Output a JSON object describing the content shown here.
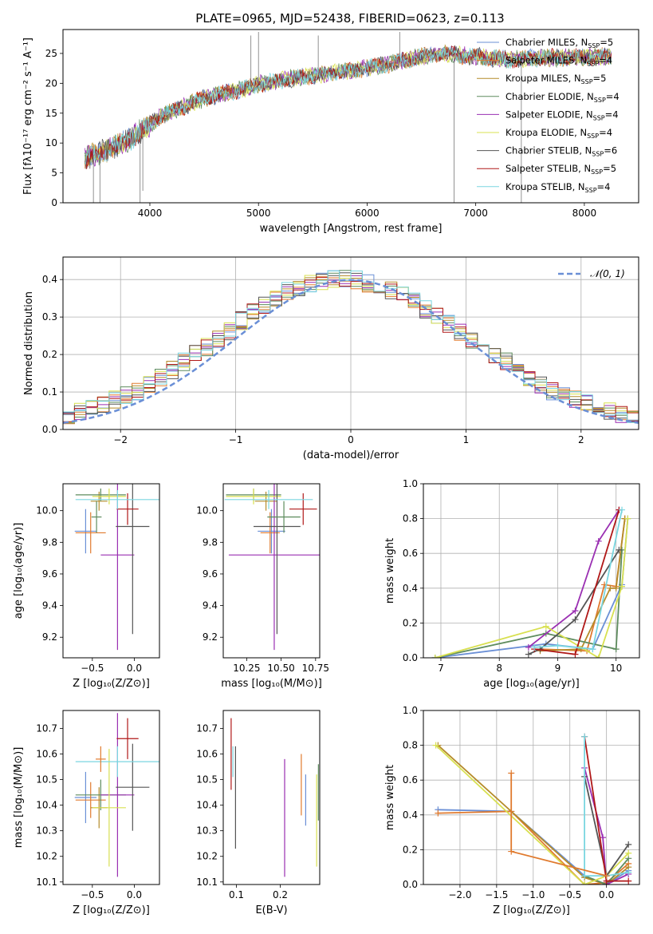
{
  "title": "PLATE=0965, MJD=52438, FIBERID=0623, z=0.113",
  "colors": {
    "chabrier_miles": "#6a8fd6",
    "salpeter_miles": "#e07a2e",
    "kroupa_miles": "#b58b2a",
    "chabrier_elodie": "#5e8c5e",
    "salpeter_elodie": "#9a2fb2",
    "kroupa_elodie": "#d8e050",
    "chabrier_stelib": "#555555",
    "salpeter_stelib": "#b01818",
    "kroupa_stelib": "#7ad6e0",
    "normal_curve": "#6a8fd6",
    "grid": "#b0b0b0"
  },
  "chart_data": [
    {
      "id": "spectrum",
      "type": "line",
      "xlabel": "wavelength [Angstrom, rest frame]",
      "ylabel": "Flux [fλ10⁻¹⁷ erg cm⁻² s⁻¹ A⁻¹]",
      "xlim": [
        3200,
        8500
      ],
      "ylim": [
        0,
        29
      ],
      "xticks": [
        4000,
        5000,
        6000,
        7000,
        8000
      ],
      "yticks": [
        0,
        5,
        10,
        15,
        20,
        25
      ],
      "grid": false,
      "legend_position": "upper right",
      "legend": [
        {
          "label": "Chabrier MILES, N",
          "sub": "SSP",
          "tail": "=5",
          "color_key": "chabrier_miles"
        },
        {
          "label": "Salpeter MILES, N",
          "sub": "SSP",
          "tail": "=4",
          "color_key": "salpeter_miles"
        },
        {
          "label": "Kroupa MILES, N",
          "sub": "SSP",
          "tail": "=5",
          "color_key": "kroupa_miles"
        },
        {
          "label": "Chabrier ELODIE, N",
          "sub": "SSP",
          "tail": "=4",
          "color_key": "chabrier_elodie"
        },
        {
          "label": "Salpeter ELODIE, N",
          "sub": "SSP",
          "tail": "=4",
          "color_key": "salpeter_elodie"
        },
        {
          "label": "Kroupa ELODIE, N",
          "sub": "SSP",
          "tail": "=4",
          "color_key": "kroupa_elodie"
        },
        {
          "label": "Chabrier STELIB, N",
          "sub": "SSP",
          "tail": "=6",
          "color_key": "chabrier_stelib"
        },
        {
          "label": "Salpeter STELIB, N",
          "sub": "SSP",
          "tail": "=5",
          "color_key": "salpeter_stelib"
        },
        {
          "label": "Kroupa STELIB, N",
          "sub": "SSP",
          "tail": "=4",
          "color_key": "kroupa_stelib"
        }
      ],
      "continuum_points": [
        [
          3400,
          7.5
        ],
        [
          3600,
          8.8
        ],
        [
          3800,
          10.5
        ],
        [
          3950,
          12.5
        ],
        [
          4100,
          14.5
        ],
        [
          4300,
          16
        ],
        [
          4500,
          17.5
        ],
        [
          4800,
          18.8
        ],
        [
          5000,
          19.8
        ],
        [
          5300,
          20.8
        ],
        [
          5600,
          21.5
        ],
        [
          5900,
          22.3
        ],
        [
          6200,
          23.2
        ],
        [
          6500,
          24.5
        ],
        [
          6700,
          25
        ],
        [
          7000,
          24.5
        ],
        [
          7300,
          24
        ],
        [
          7600,
          24.3
        ],
        [
          7900,
          24.3
        ],
        [
          8250,
          24.5
        ]
      ],
      "spikes": [
        [
          3480,
          0
        ],
        [
          3540,
          0
        ],
        [
          3910,
          0
        ],
        [
          3935,
          2
        ],
        [
          5000,
          28.6
        ],
        [
          5550,
          28
        ],
        [
          6300,
          28.6
        ],
        [
          6800,
          0
        ],
        [
          7420,
          0
        ],
        [
          4930,
          28
        ]
      ]
    },
    {
      "id": "residuals",
      "type": "area",
      "xlabel": "(data-model)/error",
      "ylabel": "Normed distribution",
      "xlim": [
        -2.5,
        2.5
      ],
      "ylim": [
        0,
        0.46
      ],
      "xticks": [
        -2,
        -1,
        0,
        1,
        2
      ],
      "yticks": [
        0.0,
        0.1,
        0.2,
        0.3,
        0.4
      ],
      "grid": true,
      "legend_position": "upper right",
      "legend": [
        {
          "label": "𝒩(0, 1)",
          "color_key": "normal_curve"
        }
      ],
      "bin_width": 0.1,
      "bin_start": -2.5,
      "histogram": [
        0.04,
        0.05,
        0.06,
        0.07,
        0.08,
        0.09,
        0.1,
        0.12,
        0.14,
        0.16,
        0.18,
        0.2,
        0.22,
        0.24,
        0.26,
        0.29,
        0.31,
        0.33,
        0.35,
        0.37,
        0.38,
        0.39,
        0.395,
        0.4,
        0.4,
        0.4,
        0.39,
        0.38,
        0.37,
        0.36,
        0.34,
        0.32,
        0.3,
        0.28,
        0.26,
        0.24,
        0.22,
        0.2,
        0.18,
        0.16,
        0.14,
        0.12,
        0.1,
        0.09,
        0.08,
        0.07,
        0.06,
        0.05,
        0.04,
        0.03
      ]
    },
    {
      "id": "age_vs_Z",
      "type": "scatter",
      "xlabel": "Z [log₁₀(Z/Z⊙)]",
      "ylabel": "age  [log₁₀(age/yr)]",
      "xlim": [
        -0.85,
        0.3
      ],
      "ylim": [
        9.07,
        10.17
      ],
      "xticks": [
        -0.5,
        0.0
      ],
      "yticks": [
        9.2,
        9.4,
        9.6,
        9.8,
        10.0
      ],
      "grid": false,
      "points": [
        {
          "color_key": "chabrier_miles",
          "x": -0.58,
          "xerr": 0.13,
          "y": 9.87,
          "yerr": 0.14
        },
        {
          "color_key": "salpeter_miles",
          "x": -0.52,
          "xerr": 0.18,
          "y": 9.86,
          "yerr": 0.13
        },
        {
          "color_key": "kroupa_miles",
          "x": -0.42,
          "xerr": 0.1,
          "y": 10.06,
          "yerr": 0.06
        },
        {
          "color_key": "chabrier_elodie",
          "x": -0.4,
          "xerr": 0.3,
          "y": 10.1,
          "yerr": 0.04
        },
        {
          "color_key": "salpeter_elodie",
          "x": -0.2,
          "xerr": 0.2,
          "y": 9.72,
          "yerr": 0.6
        },
        {
          "color_key": "kroupa_elodie",
          "x": -0.3,
          "xerr": 0.2,
          "y": 10.09,
          "yerr": 0.05
        },
        {
          "color_key": "chabrier_stelib",
          "x": -0.02,
          "xerr": 0.2,
          "y": 9.9,
          "yerr": 0.68
        },
        {
          "color_key": "salpeter_stelib",
          "x": -0.08,
          "xerr": 0.13,
          "y": 10.01,
          "yerr": 0.1
        },
        {
          "color_key": "kroupa_stelib",
          "x": -0.2,
          "xerr": 0.5,
          "y": 10.07,
          "yerr": 0.06
        },
        {
          "color_key": "chabrier_elodie",
          "x": -0.45,
          "xerr": 0.06,
          "y": 9.96,
          "yerr": 0.1
        }
      ]
    },
    {
      "id": "age_vs_mass",
      "type": "scatter",
      "xlabel": "mass [log₁₀(M/M⊙)]",
      "ylabel": "",
      "xlim": [
        10.08,
        10.78
      ],
      "ylim": [
        9.07,
        10.17
      ],
      "xticks": [
        10.25,
        10.5,
        10.75
      ],
      "yticks": [
        9.2,
        9.4,
        9.6,
        9.8,
        10.0
      ],
      "grid": false,
      "points": [
        {
          "color_key": "chabrier_miles",
          "x": 10.43,
          "xerr": 0.1,
          "y": 9.87,
          "yerr": 0.14
        },
        {
          "color_key": "salpeter_miles",
          "x": 10.42,
          "xerr": 0.07,
          "y": 9.86,
          "yerr": 0.13
        },
        {
          "color_key": "kroupa_miles",
          "x": 10.39,
          "xerr": 0.08,
          "y": 10.06,
          "yerr": 0.06
        },
        {
          "color_key": "chabrier_elodie",
          "x": 10.3,
          "xerr": 0.2,
          "y": 10.1,
          "yerr": 0.04
        },
        {
          "color_key": "salpeter_elodie",
          "x": 10.45,
          "xerr": 0.33,
          "y": 9.72,
          "yerr": 0.6
        },
        {
          "color_key": "kroupa_elodie",
          "x": 10.3,
          "xerr": 0.2,
          "y": 10.09,
          "yerr": 0.05
        },
        {
          "color_key": "chabrier_stelib",
          "x": 10.47,
          "xerr": 0.17,
          "y": 9.9,
          "yerr": 0.68
        },
        {
          "color_key": "salpeter_stelib",
          "x": 10.66,
          "xerr": 0.1,
          "y": 10.01,
          "yerr": 0.1
        },
        {
          "color_key": "kroupa_stelib",
          "x": 10.41,
          "xerr": 0.32,
          "y": 10.07,
          "yerr": 0.06
        },
        {
          "color_key": "chabrier_elodie",
          "x": 10.52,
          "xerr": 0.12,
          "y": 9.96,
          "yerr": 0.1
        }
      ]
    },
    {
      "id": "weight_vs_age",
      "type": "line",
      "xlabel": "age  [log₁₀(age/yr)]",
      "ylabel": "mass weight",
      "xlim": [
        6.7,
        10.4
      ],
      "ylim": [
        0,
        1.0
      ],
      "xticks": [
        7,
        8,
        9,
        10
      ],
      "yticks": [
        0.0,
        0.2,
        0.4,
        0.6,
        0.8,
        1.0
      ],
      "grid": true,
      "series": [
        {
          "color_key": "chabrier_miles",
          "x": [
            6.9,
            8.8,
            9.6,
            10.1,
            10.1,
            10.2
          ],
          "y": [
            0.0,
            0.08,
            0.05,
            0.42,
            0.41,
            0.8
          ]
        },
        {
          "color_key": "salpeter_miles",
          "x": [
            8.7,
            9.5,
            9.8,
            10.0,
            10.15
          ],
          "y": [
            0.05,
            0.04,
            0.42,
            0.41,
            0.8
          ]
        },
        {
          "color_key": "kroupa_miles",
          "x": [
            8.7,
            9.4,
            9.9,
            10.0,
            10.15
          ],
          "y": [
            0.04,
            0.05,
            0.4,
            0.4,
            0.8
          ]
        },
        {
          "color_key": "chabrier_elodie",
          "x": [
            6.9,
            8.8,
            10.0,
            10.1
          ],
          "y": [
            0.0,
            0.14,
            0.05,
            0.62
          ]
        },
        {
          "color_key": "salpeter_elodie",
          "x": [
            8.5,
            9.3,
            9.7,
            10.05
          ],
          "y": [
            0.06,
            0.27,
            0.67,
            0.85
          ]
        },
        {
          "color_key": "kroupa_elodie",
          "x": [
            6.9,
            8.8,
            9.7,
            10.1,
            10.2
          ],
          "y": [
            0.0,
            0.18,
            0.0,
            0.41,
            0.8
          ]
        },
        {
          "color_key": "chabrier_stelib",
          "x": [
            8.5,
            8.7,
            9.3,
            10.05
          ],
          "y": [
            0.02,
            0.05,
            0.22,
            0.62
          ]
        },
        {
          "color_key": "salpeter_stelib",
          "x": [
            8.6,
            9.3,
            10.05
          ],
          "y": [
            0.05,
            0.02,
            0.85
          ]
        },
        {
          "color_key": "kroupa_stelib",
          "x": [
            8.6,
            9.0,
            9.6,
            10.1
          ],
          "y": [
            0.06,
            0.07,
            0.05,
            0.85
          ]
        }
      ]
    },
    {
      "id": "mass_vs_Z",
      "type": "scatter",
      "xlabel": "Z [log₁₀(Z/Z⊙)]",
      "ylabel": "mass [log₁₀(M/M⊙)]",
      "xlim": [
        -0.85,
        0.3
      ],
      "ylim": [
        10.09,
        10.77
      ],
      "xticks": [
        -0.5,
        0.0
      ],
      "yticks": [
        10.1,
        10.2,
        10.3,
        10.4,
        10.5,
        10.6,
        10.7
      ],
      "grid": false,
      "points": [
        {
          "color_key": "chabrier_miles",
          "x": -0.58,
          "xerr": 0.13,
          "y": 10.43,
          "yerr": 0.1
        },
        {
          "color_key": "salpeter_miles",
          "x": -0.52,
          "xerr": 0.18,
          "y": 10.42,
          "yerr": 0.07
        },
        {
          "color_key": "kroupa_miles",
          "x": -0.42,
          "xerr": 0.1,
          "y": 10.39,
          "yerr": 0.08
        },
        {
          "color_key": "chabrier_elodie",
          "x": -0.4,
          "xerr": 0.3,
          "y": 10.44,
          "yerr": 0.06
        },
        {
          "color_key": "salpeter_elodie",
          "x": -0.2,
          "xerr": 0.2,
          "y": 10.44,
          "yerr": 0.32
        },
        {
          "color_key": "kroupa_elodie",
          "x": -0.3,
          "xerr": 0.2,
          "y": 10.39,
          "yerr": 0.23
        },
        {
          "color_key": "chabrier_stelib",
          "x": -0.02,
          "xerr": 0.2,
          "y": 10.47,
          "yerr": 0.17
        },
        {
          "color_key": "salpeter_stelib",
          "x": -0.08,
          "xerr": 0.13,
          "y": 10.66,
          "yerr": 0.08
        },
        {
          "color_key": "kroupa_stelib",
          "x": -0.2,
          "xerr": 0.5,
          "y": 10.57,
          "yerr": 0.06
        },
        {
          "color_key": "salpeter_miles",
          "x": -0.4,
          "xerr": 0.06,
          "y": 10.58,
          "yerr": 0.05
        }
      ]
    },
    {
      "id": "mass_vs_ebv",
      "type": "scatter",
      "xlabel": "E(B-V)",
      "ylabel": "",
      "xlim": [
        0.07,
        0.29
      ],
      "ylim": [
        10.09,
        10.77
      ],
      "xticks": [
        0.1,
        0.2
      ],
      "yticks": [
        10.1,
        10.2,
        10.3,
        10.4,
        10.5,
        10.6,
        10.7
      ],
      "grid": false,
      "points": [
        {
          "color_key": "salpeter_stelib",
          "x": 0.088,
          "xerr": 0,
          "y": 10.6,
          "yerr": 0.14
        },
        {
          "color_key": "kroupa_stelib",
          "x": 0.092,
          "xerr": 0,
          "y": 10.57,
          "yerr": 0.06
        },
        {
          "color_key": "chabrier_stelib",
          "x": 0.098,
          "xerr": 0,
          "y": 10.43,
          "yerr": 0.2
        },
        {
          "color_key": "salpeter_elodie",
          "x": 0.21,
          "xerr": 0,
          "y": 10.35,
          "yerr": 0.23
        },
        {
          "color_key": "salpeter_miles",
          "x": 0.248,
          "xerr": 0,
          "y": 10.48,
          "yerr": 0.12
        },
        {
          "color_key": "chabrier_miles",
          "x": 0.258,
          "xerr": 0,
          "y": 10.42,
          "yerr": 0.1
        },
        {
          "color_key": "kroupa_elodie",
          "x": 0.283,
          "xerr": 0,
          "y": 10.34,
          "yerr": 0.18
        },
        {
          "color_key": "chabrier_elodie",
          "x": 0.287,
          "xerr": 0,
          "y": 10.45,
          "yerr": 0.11
        }
      ]
    },
    {
      "id": "weight_vs_Z",
      "type": "line",
      "xlabel": "Z [log₁₀(Z/Z⊙)]",
      "ylabel": "mass weight",
      "xlim": [
        -2.5,
        0.45
      ],
      "ylim": [
        0,
        1.0
      ],
      "xticks": [
        -2.0,
        -1.5,
        -1.0,
        -0.5,
        0.0
      ],
      "yticks": [
        0.0,
        0.2,
        0.4,
        0.6,
        0.8,
        1.0
      ],
      "grid": true,
      "series": [
        {
          "color_key": "chabrier_miles",
          "x": [
            -2.3,
            -1.3,
            -0.3,
            0.0,
            0.3
          ],
          "y": [
            0.43,
            0.42,
            0.05,
            0.0,
            0.08
          ]
        },
        {
          "color_key": "salpeter_miles",
          "x": [
            -2.3,
            -1.3,
            -0.3,
            0.0,
            0.3
          ],
          "y": [
            0.41,
            0.42,
            0.0,
            0.01,
            0.12
          ]
        },
        {
          "color_key": "kroupa_miles",
          "x": [
            -2.3,
            -0.3,
            0.0,
            0.3
          ],
          "y": [
            0.8,
            0.04,
            0.0,
            0.1
          ]
        },
        {
          "color_key": "chabrier_elodie",
          "x": [
            -0.3,
            0.0,
            0.3
          ],
          "y": [
            0.05,
            0.0,
            0.15
          ]
        },
        {
          "color_key": "salpeter_elodie",
          "x": [
            -0.3,
            -0.05,
            0.0,
            0.3
          ],
          "y": [
            0.67,
            0.27,
            0.0,
            0.06
          ]
        },
        {
          "color_key": "kroupa_elodie",
          "x": [
            -2.33,
            -0.3,
            0.0,
            0.3
          ],
          "y": [
            0.8,
            0.0,
            0.05,
            0.18
          ]
        },
        {
          "color_key": "chabrier_stelib",
          "x": [
            -0.3,
            0.0,
            0.3
          ],
          "y": [
            0.62,
            0.05,
            0.23
          ]
        },
        {
          "color_key": "salpeter_stelib",
          "x": [
            -0.3,
            0.0,
            0.3
          ],
          "y": [
            0.85,
            0.02,
            0.02
          ]
        },
        {
          "color_key": "kroupa_stelib",
          "x": [
            -0.3,
            -0.3,
            0.0,
            0.3
          ],
          "y": [
            0.85,
            0.05,
            0.05,
            0.07
          ]
        },
        {
          "color_key": "salpeter_miles",
          "x": [
            -1.3,
            -1.3,
            0.0
          ],
          "y": [
            0.64,
            0.19,
            0.05
          ]
        }
      ]
    }
  ]
}
